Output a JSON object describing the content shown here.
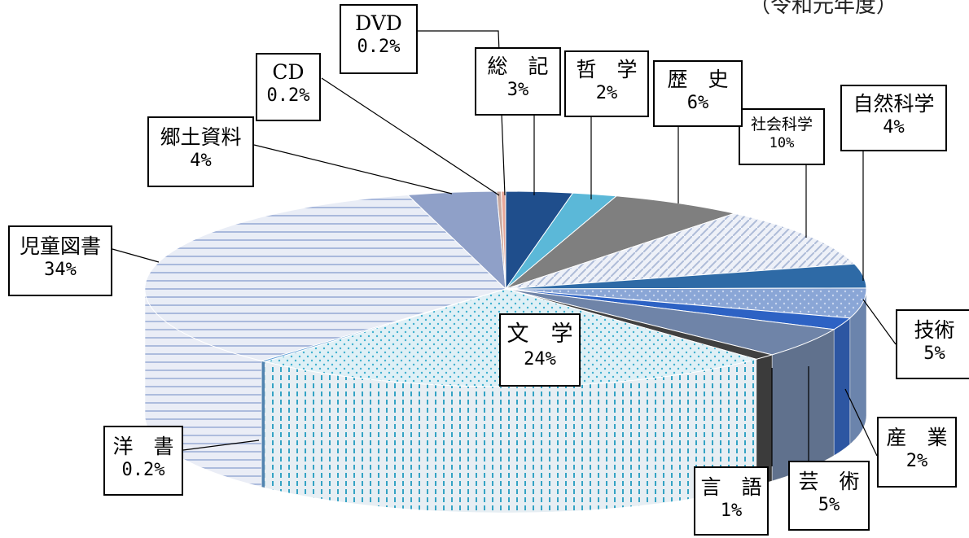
{
  "header": {
    "subtitle": "（令和元年度）"
  },
  "colors": {
    "児童図書": "#9fb0d6",
    "郷土資料": "#8fa0c8",
    "CD": "#c8a9a0",
    "DVD": "#e8a89a",
    "総記": "#1f4e8c",
    "哲学": "#5bb8d8",
    "歴史": "#7f7f7f",
    "社会科学": "#b9c4da",
    "自然科学": "#2e6aa6",
    "技術": "#7d9cd0",
    "産業": "#2d62c4",
    "芸術": "#6f84a8",
    "言語": "#404040",
    "文学": "#2aa8c8",
    "洋書": "#5b9bd5"
  },
  "chart_data": {
    "type": "pie",
    "title": "",
    "subtitle": "（令和元年度）",
    "style": "3d-exploded",
    "slices": [
      {
        "name": "総　記",
        "label": "3%",
        "value": 3
      },
      {
        "name": "哲　学",
        "label": "2%",
        "value": 2
      },
      {
        "name": "歴　史",
        "label": "6%",
        "value": 6
      },
      {
        "name": "社会科学",
        "label": "10%",
        "value": 10
      },
      {
        "name": "自然科学",
        "label": "4%",
        "value": 4
      },
      {
        "name": "技術",
        "label": "5%",
        "value": 5
      },
      {
        "name": "産　業",
        "label": "2%",
        "value": 2
      },
      {
        "name": "芸　術",
        "label": "5%",
        "value": 5
      },
      {
        "name": "言　語",
        "label": "1%",
        "value": 1
      },
      {
        "name": "文　学",
        "label": "24%",
        "value": 24
      },
      {
        "name": "洋　書",
        "label": "0.2%",
        "value": 0.2
      },
      {
        "name": "児童図書",
        "label": "34%",
        "value": 34
      },
      {
        "name": "郷土資料",
        "label": "4%",
        "value": 4
      },
      {
        "name": "CD",
        "label": "0.2%",
        "value": 0.2
      },
      {
        "name": "DVD",
        "label": "0.2%",
        "value": 0.2
      }
    ]
  }
}
